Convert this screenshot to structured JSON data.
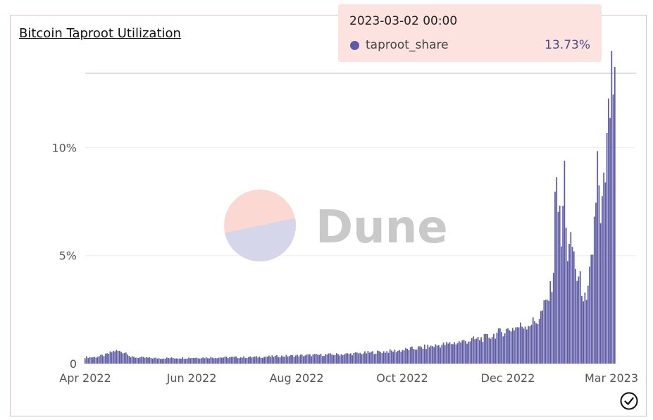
{
  "title": "Bitcoin Taproot Utilization",
  "watermark": "Dune",
  "tooltip": {
    "title": "2023-03-02 00:00",
    "series": "taproot_share",
    "value": "13.73%"
  },
  "colors": {
    "bar": "#5e5ba6",
    "tooltip_bg": "#fde3e0",
    "logo_top": "#fcd8d2",
    "logo_bottom": "#d6d6ea",
    "border": "#e2bfc6"
  },
  "icons": {
    "status": "check-circle-icon"
  },
  "chart_data": {
    "type": "bar",
    "title": "Bitcoin Taproot Utilization",
    "xlabel": "",
    "ylabel": "",
    "x_start": "2022-03-30",
    "x_end": "2023-03-02",
    "x_ticks": [
      "Apr 2022",
      "Jun 2022",
      "Aug 2022",
      "Oct 2022",
      "Dec 2022",
      "Mar 2023"
    ],
    "y_ticks": [
      "0",
      "5%",
      "10%"
    ],
    "ylim": [
      0,
      0.137
    ],
    "grid": true,
    "legend": "none",
    "series": [
      {
        "name": "taproot_share",
        "anchors": [
          [
            "2022-03-30",
            0.003
          ],
          [
            "2022-04-05",
            0.003
          ],
          [
            "2022-04-12",
            0.004
          ],
          [
            "2022-04-18",
            0.006
          ],
          [
            "2022-04-26",
            0.005
          ],
          [
            "2022-04-28",
            0.003
          ],
          [
            "2022-05-15",
            0.0025
          ],
          [
            "2022-06-15",
            0.0028
          ],
          [
            "2022-07-15",
            0.003
          ],
          [
            "2022-08-15",
            0.0038
          ],
          [
            "2022-09-15",
            0.0045
          ],
          [
            "2022-10-15",
            0.006
          ],
          [
            "2022-11-15",
            0.009
          ],
          [
            "2022-12-10",
            0.012
          ],
          [
            "2022-12-25",
            0.016
          ],
          [
            "2023-01-05",
            0.018
          ],
          [
            "2023-01-12",
            0.02
          ],
          [
            "2023-01-18",
            0.029
          ],
          [
            "2023-01-20",
            0.033
          ],
          [
            "2023-01-22",
            0.045
          ],
          [
            "2023-01-24",
            0.097
          ],
          [
            "2023-01-25",
            0.075
          ],
          [
            "2023-01-27",
            0.055
          ],
          [
            "2023-01-29",
            0.088
          ],
          [
            "2023-01-31",
            0.05
          ],
          [
            "2023-02-03",
            0.055
          ],
          [
            "2023-02-06",
            0.04
          ],
          [
            "2023-02-09",
            0.036
          ],
          [
            "2023-02-12",
            0.026
          ],
          [
            "2023-02-16",
            0.053
          ],
          [
            "2023-02-19",
            0.092
          ],
          [
            "2023-02-21",
            0.062
          ],
          [
            "2023-02-24",
            0.087
          ],
          [
            "2023-02-27",
            0.121
          ],
          [
            "2023-03-02",
            0.1373
          ]
        ]
      }
    ]
  }
}
